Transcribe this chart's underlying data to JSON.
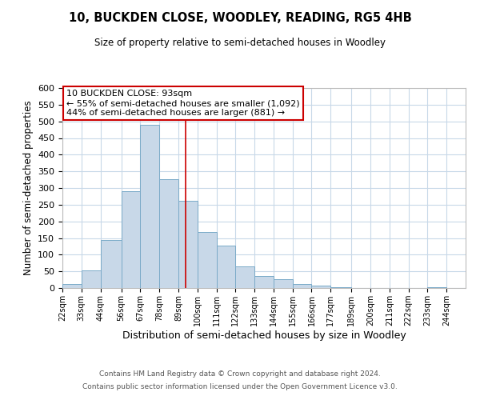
{
  "title": "10, BUCKDEN CLOSE, WOODLEY, READING, RG5 4HB",
  "subtitle": "Size of property relative to semi-detached houses in Woodley",
  "xlabel": "Distribution of semi-detached houses by size in Woodley",
  "ylabel": "Number of semi-detached properties",
  "bin_labels": [
    "22sqm",
    "33sqm",
    "44sqm",
    "56sqm",
    "67sqm",
    "78sqm",
    "89sqm",
    "100sqm",
    "111sqm",
    "122sqm",
    "133sqm",
    "144sqm",
    "155sqm",
    "166sqm",
    "177sqm",
    "189sqm",
    "200sqm",
    "211sqm",
    "222sqm",
    "233sqm",
    "244sqm"
  ],
  "bin_edges": [
    22,
    33,
    44,
    56,
    67,
    78,
    89,
    100,
    111,
    122,
    133,
    144,
    155,
    166,
    177,
    189,
    200,
    211,
    222,
    233,
    244
  ],
  "bar_heights": [
    12,
    53,
    143,
    290,
    490,
    327,
    262,
    168,
    128,
    65,
    36,
    26,
    12,
    8,
    3,
    0,
    0,
    0,
    0,
    2
  ],
  "bar_color": "#c8d8e8",
  "bar_edge_color": "#7aaac8",
  "vline_x": 93,
  "vline_color": "#cc0000",
  "ylim": [
    0,
    600
  ],
  "yticks": [
    0,
    50,
    100,
    150,
    200,
    250,
    300,
    350,
    400,
    450,
    500,
    550,
    600
  ],
  "annotation_title": "10 BUCKDEN CLOSE: 93sqm",
  "annotation_line1": "← 55% of semi-detached houses are smaller (1,092)",
  "annotation_line2": "44% of semi-detached houses are larger (881) →",
  "annotation_box_color": "#ffffff",
  "annotation_box_edge": "#cc0000",
  "footer1": "Contains HM Land Registry data © Crown copyright and database right 2024.",
  "footer2": "Contains public sector information licensed under the Open Government Licence v3.0.",
  "background_color": "#ffffff",
  "grid_color": "#c8d8e8"
}
